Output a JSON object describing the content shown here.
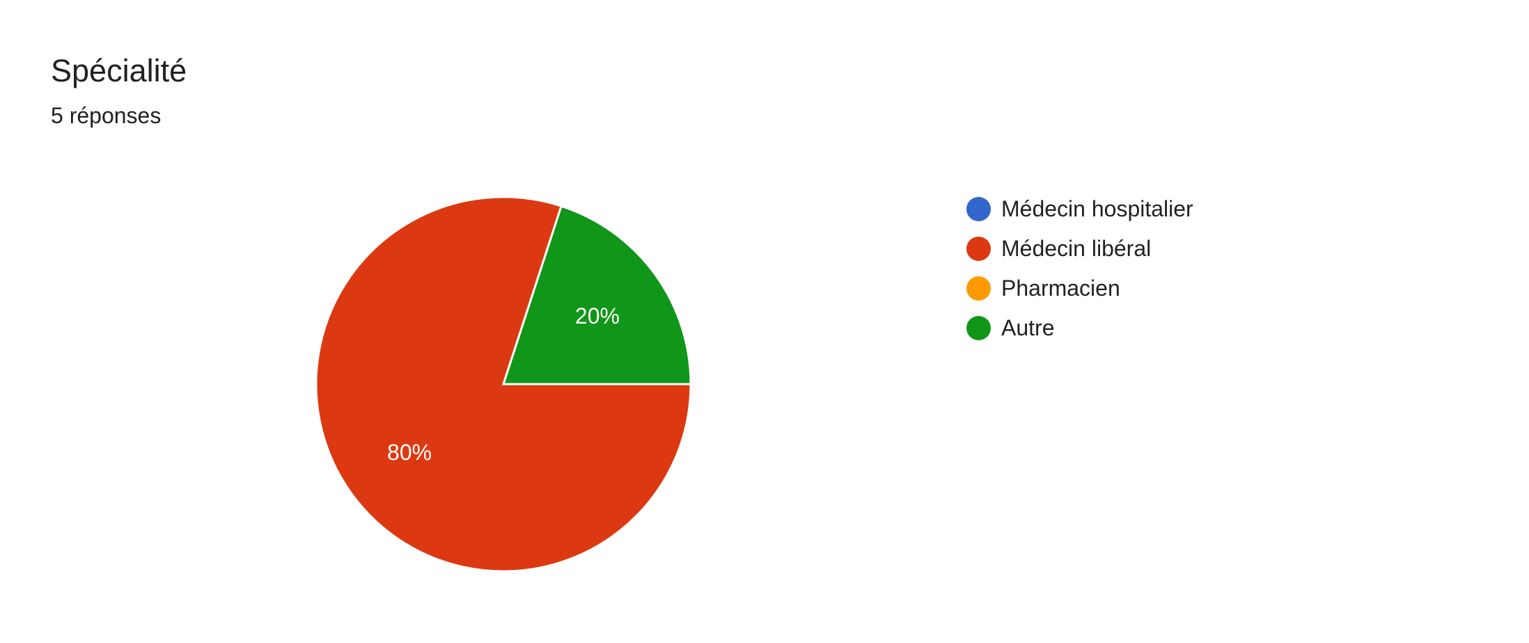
{
  "chart_data": {
    "type": "pie",
    "title": "Spécialité",
    "subtitle": "5 réponses",
    "categories": [
      "Médecin hospitalier",
      "Médecin libéral",
      "Pharmacien",
      "Autre"
    ],
    "values": [
      0,
      80,
      0,
      20
    ],
    "data_labels": [
      "",
      "80%",
      "",
      "20%"
    ],
    "colors": [
      "#3366cc",
      "#dc3912",
      "#ff9900",
      "#109618"
    ],
    "legend_position": "right"
  }
}
